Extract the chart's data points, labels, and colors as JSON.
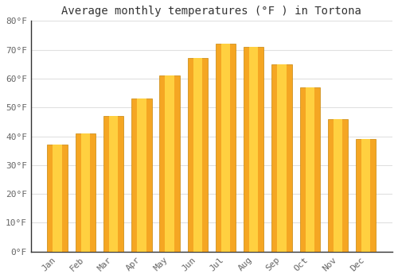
{
  "title": "Average monthly temperatures (°F ) in Tortona",
  "months": [
    "Jan",
    "Feb",
    "Mar",
    "Apr",
    "May",
    "Jun",
    "Jul",
    "Aug",
    "Sep",
    "Oct",
    "Nov",
    "Dec"
  ],
  "values": [
    37,
    41,
    47,
    53,
    61,
    67,
    72,
    71,
    65,
    57,
    46,
    39
  ],
  "bar_color_left": "#F5A623",
  "bar_color_center": "#FFD040",
  "bar_color_right": "#F5A623",
  "bar_edge_color": "#C8850A",
  "ylim": [
    0,
    80
  ],
  "yticks": [
    0,
    10,
    20,
    30,
    40,
    50,
    60,
    70,
    80
  ],
  "ytick_labels": [
    "0°F",
    "10°F",
    "20°F",
    "30°F",
    "40°F",
    "50°F",
    "60°F",
    "70°F",
    "80°F"
  ],
  "background_color": "#FFFFFF",
  "grid_color": "#E0E0E0",
  "title_fontsize": 10,
  "tick_fontsize": 8,
  "tick_color": "#666666",
  "figsize": [
    5.0,
    3.5
  ],
  "dpi": 100,
  "bar_width": 0.72
}
